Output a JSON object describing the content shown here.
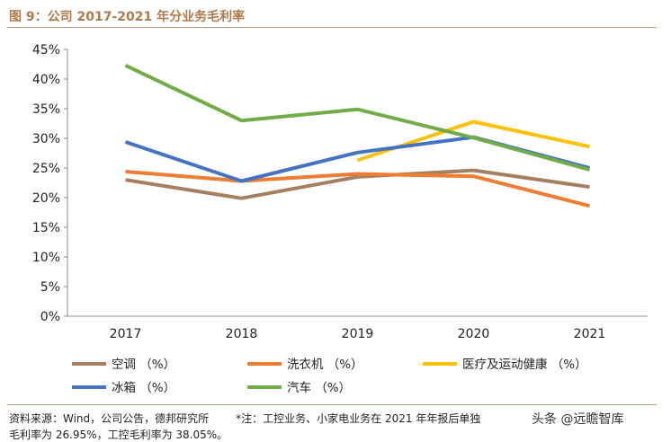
{
  "title": "图 9：公司 2017-2021 年分业务毛利率",
  "source": {
    "line1_left": "资料来源：Wind，公司公告，德邦研究所",
    "line1_right": "*注：工控业务、小家电业务在 2021 年年报后单独",
    "line2": "毛利率为 26.95%，工控毛利率为 38.05%。"
  },
  "watermark": "头条 @远瞻智库",
  "chart_data": {
    "type": "line",
    "x": [
      "2017",
      "2018",
      "2019",
      "2020",
      "2021"
    ],
    "y_ticks": [
      "0%",
      "5%",
      "10%",
      "15%",
      "20%",
      "25%",
      "30%",
      "35%",
      "40%",
      "45%"
    ],
    "ylim": [
      0,
      45
    ],
    "grid": false,
    "legend_position": "bottom",
    "series": [
      {
        "name": "空调 （%）",
        "color": "#a5805e",
        "values": [
          23.0,
          19.9,
          23.5,
          24.6,
          21.8
        ]
      },
      {
        "name": "洗衣机 （%）",
        "color": "#ed7d31",
        "values": [
          24.4,
          22.8,
          24.0,
          23.6,
          18.6
        ]
      },
      {
        "name": "医疗及运动健康 （%）",
        "color": "#ffc000",
        "values": [
          null,
          null,
          26.3,
          32.8,
          28.6
        ]
      },
      {
        "name": "冰箱 （%）",
        "color": "#4472c4",
        "values": [
          29.4,
          22.8,
          27.6,
          30.2,
          25.0
        ]
      },
      {
        "name": "汽车 （%）",
        "color": "#70ad47",
        "values": [
          42.3,
          33.0,
          34.9,
          30.1,
          24.7
        ]
      }
    ]
  }
}
